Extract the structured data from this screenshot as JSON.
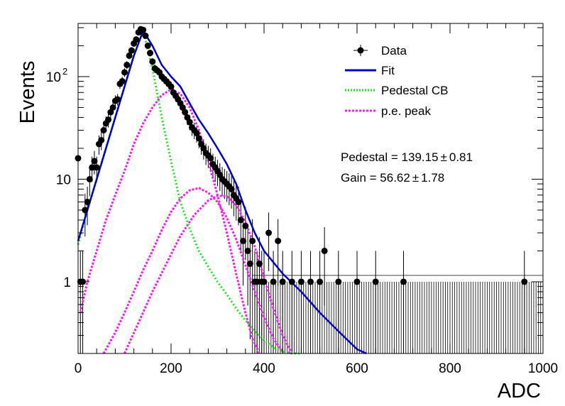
{
  "chart_data": {
    "type": "scatter",
    "xlabel": "ADC",
    "ylabel": "Events",
    "xlim": [
      0,
      1000
    ],
    "ylim": [
      0.2,
      330
    ],
    "y_scale": "log",
    "x_ticks": [
      "0",
      "200",
      "400",
      "600",
      "800",
      "1000"
    ],
    "y_ticks": [
      {
        "value": 1,
        "label": "1"
      },
      {
        "value": 10,
        "label": "10"
      },
      {
        "value": 100,
        "label": "10",
        "exponent": "2"
      }
    ],
    "grid": false,
    "legend_position": "top-right",
    "legend": [
      {
        "label": "Data",
        "color": "#000000",
        "style": "marker"
      },
      {
        "label": "Fit",
        "color": "#0000cc",
        "style": "solid"
      },
      {
        "label": "Pedestal CB",
        "color": "#22dd22",
        "style": "dotted"
      },
      {
        "label": "p.e. peak",
        "color": "#ee22ee",
        "style": "dotted"
      }
    ],
    "annotations": [
      {
        "text": "Pedestal = 139.15",
        "pm": "±",
        "err": "0.81"
      },
      {
        "text": "Gain = 56.62",
        "pm": "±",
        "err": "1.78"
      }
    ],
    "data": {
      "x": [
        0,
        5,
        10,
        15,
        20,
        25,
        30,
        35,
        40,
        45,
        50,
        55,
        60,
        65,
        70,
        75,
        80,
        85,
        90,
        95,
        100,
        105,
        110,
        115,
        120,
        125,
        130,
        135,
        140,
        145,
        150,
        155,
        160,
        165,
        170,
        175,
        180,
        185,
        190,
        195,
        200,
        205,
        210,
        215,
        220,
        225,
        230,
        235,
        240,
        245,
        250,
        255,
        260,
        265,
        270,
        275,
        280,
        285,
        290,
        295,
        300,
        305,
        310,
        315,
        320,
        325,
        330,
        335,
        340,
        345,
        350,
        355,
        360,
        365,
        370,
        375,
        380,
        385,
        390,
        395,
        400,
        410,
        420,
        430,
        440,
        460,
        480,
        500,
        520,
        530,
        560,
        600,
        640,
        700,
        960
      ],
      "y": [
        16,
        1,
        1,
        5,
        6,
        10,
        13,
        15,
        13,
        22,
        24,
        30,
        35,
        38,
        45,
        50,
        58,
        60,
        85,
        90,
        110,
        130,
        160,
        180,
        210,
        230,
        270,
        290,
        285,
        250,
        200,
        170,
        140,
        120,
        115,
        110,
        100,
        95,
        90,
        85,
        80,
        70,
        65,
        60,
        55,
        50,
        45,
        40,
        36,
        32,
        30,
        28,
        25,
        22,
        20,
        18,
        17,
        16,
        14,
        13,
        12,
        11,
        10,
        9.5,
        9,
        8.5,
        8,
        7,
        6.5,
        6,
        4,
        2.5,
        3.5,
        2,
        1.5,
        2.5,
        1,
        1,
        1.5,
        1,
        1,
        3,
        1,
        2.5,
        1,
        1,
        1,
        1,
        1,
        2,
        1,
        1,
        1,
        1,
        1
      ]
    },
    "fit": {
      "x": [
        0,
        20,
        40,
        60,
        80,
        100,
        120,
        140,
        160,
        180,
        200,
        220,
        240,
        260,
        280,
        300,
        320,
        340,
        360,
        380,
        400,
        440,
        480,
        520,
        560,
        600,
        620
      ],
      "y": [
        2.5,
        5,
        10,
        20,
        40,
        80,
        160,
        280,
        200,
        130,
        100,
        80,
        55,
        38,
        28,
        20,
        14,
        9,
        5,
        3,
        2,
        1.2,
        0.8,
        0.5,
        0.33,
        0.22,
        0.2
      ]
    },
    "pedestal_cb": {
      "x": [
        0,
        20,
        40,
        60,
        80,
        100,
        120,
        140,
        160,
        180,
        200,
        220,
        240,
        260,
        280,
        300,
        320,
        340,
        360,
        380,
        400,
        420,
        440,
        460,
        480
      ],
      "y": [
        2.3,
        5,
        10,
        20,
        40,
        80,
        160,
        280,
        120,
        40,
        15,
        6,
        3.3,
        2,
        1.4,
        1,
        0.75,
        0.55,
        0.42,
        0.33,
        0.27,
        0.23,
        0.21,
        0.2,
        0.19
      ]
    },
    "pe_peaks": [
      {
        "x": [
          5,
          20,
          40,
          60,
          80,
          100,
          120,
          140,
          160,
          180,
          200,
          220,
          240,
          260,
          280,
          300,
          320,
          340,
          360,
          375,
          390
        ],
        "y": [
          0.5,
          1,
          2,
          4,
          7,
          12,
          22,
          35,
          50,
          66,
          75,
          68,
          50,
          30,
          15,
          7,
          3,
          1.2,
          0.5,
          0.28,
          0.2
        ]
      },
      {
        "x": [
          55,
          80,
          100,
          120,
          140,
          160,
          180,
          200,
          220,
          240,
          260,
          280,
          300,
          320,
          340,
          360,
          380,
          400,
          420,
          440,
          460
        ],
        "y": [
          0.2,
          0.32,
          0.5,
          0.8,
          1.3,
          2,
          3.2,
          4.8,
          6.5,
          7.8,
          8.2,
          7.4,
          6,
          4.2,
          2.6,
          1.45,
          0.8,
          0.45,
          0.28,
          0.21,
          0.2
        ]
      },
      {
        "x": [
          100,
          130,
          160,
          190,
          220,
          250,
          280,
          300,
          320,
          340,
          360,
          380,
          400,
          420,
          440,
          460
        ],
        "y": [
          0.2,
          0.4,
          0.8,
          1.5,
          2.8,
          4.5,
          6.2,
          6.9,
          6.8,
          5.6,
          3.8,
          2.2,
          1.1,
          0.55,
          0.3,
          0.2
        ]
      }
    ]
  }
}
